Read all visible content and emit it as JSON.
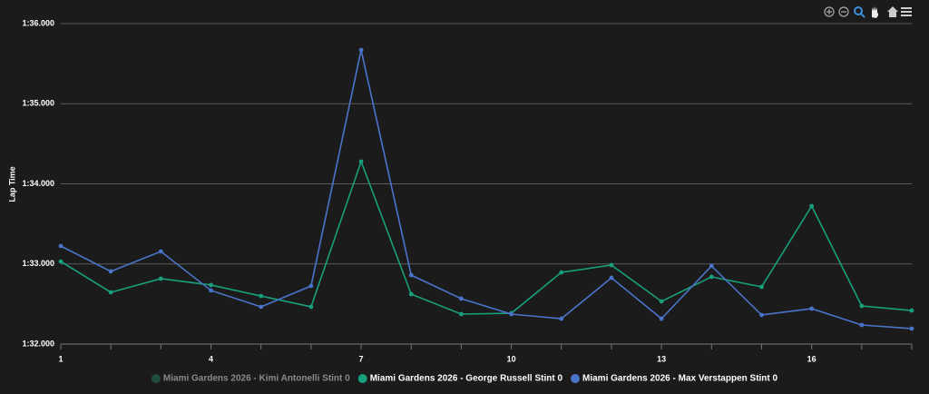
{
  "chart_data": {
    "type": "line",
    "y_label": "Lap Time",
    "x": [
      1,
      2,
      3,
      4,
      5,
      6,
      7,
      8,
      9,
      10,
      11,
      12,
      13,
      14,
      15,
      16,
      17,
      18
    ],
    "xlim": [
      1,
      18
    ],
    "xticks": [
      1,
      4,
      7,
      10,
      13,
      16
    ],
    "ylim": [
      92,
      96
    ],
    "yticks": [
      {
        "value": 92,
        "label": "1:32.000"
      },
      {
        "value": 93,
        "label": "1:33.000"
      },
      {
        "value": 94,
        "label": "1:34.000"
      },
      {
        "value": 95,
        "label": "1:35.000"
      },
      {
        "value": 96,
        "label": "1:36.000"
      }
    ],
    "grid": true,
    "legend": "bottom",
    "series": [
      {
        "name": "Miami Gardens 2026 - Kimi Antonelli Stint 0",
        "color": "#1f4d3f",
        "visible": false,
        "values": [
          null,
          null,
          null,
          null,
          null,
          null,
          null,
          null,
          null,
          null,
          null,
          null,
          null,
          null,
          null,
          null,
          null,
          null
        ]
      },
      {
        "name": "Miami Gardens 2026 - George Russell Stint 0",
        "color": "#18a07c",
        "visible": true,
        "values": [
          93.03,
          92.646,
          92.816,
          92.737,
          92.6,
          92.465,
          94.278,
          92.623,
          92.374,
          92.385,
          92.895,
          92.986,
          92.533,
          92.839,
          92.714,
          93.722,
          92.476,
          92.419
        ]
      },
      {
        "name": "Miami Gardens 2026 - Max Verstappen Stint 0",
        "color": "#4a74c9",
        "visible": true,
        "values": [
          93.224,
          92.907,
          93.156,
          92.669,
          92.465,
          92.725,
          95.671,
          92.861,
          92.567,
          92.374,
          92.317,
          92.827,
          92.317,
          92.975,
          92.363,
          92.442,
          92.238,
          92.193
        ]
      }
    ]
  }
}
